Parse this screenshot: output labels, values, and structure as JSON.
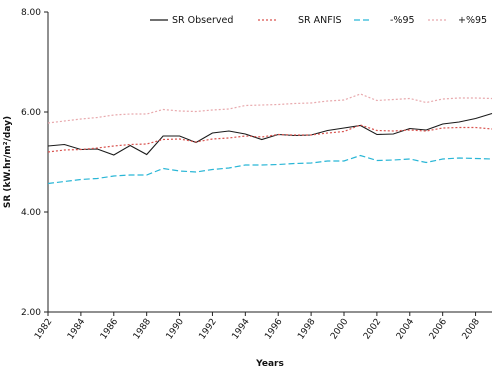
{
  "chart_data": {
    "type": "line",
    "xlabel": "Years",
    "ylabel": "SR (kW.hr/m²/day)",
    "ylim": [
      2,
      8
    ],
    "xlim": [
      1982,
      2009
    ],
    "y_ticks": [
      "2.00",
      "4.00",
      "6.00",
      "8.00"
    ],
    "x_ticks": [
      "1982",
      "1984",
      "1986",
      "1988",
      "1990",
      "1992",
      "1994",
      "1996",
      "1998",
      "2000",
      "2002",
      "2004",
      "2006",
      "2008"
    ],
    "grid": false,
    "legend_position": "top",
    "x": [
      1982,
      1983,
      1984,
      1985,
      1986,
      1987,
      1988,
      1989,
      1990,
      1991,
      1992,
      1993,
      1994,
      1995,
      1996,
      1997,
      1998,
      1999,
      2000,
      2001,
      2002,
      2003,
      2004,
      2005,
      2006,
      2007,
      2008,
      2009
    ],
    "series": [
      {
        "name": "SR Observed",
        "color": "#1a1a1a",
        "dash": "solid",
        "values": [
          5.32,
          5.35,
          5.25,
          5.26,
          5.14,
          5.33,
          5.15,
          5.52,
          5.52,
          5.39,
          5.58,
          5.62,
          5.56,
          5.45,
          5.55,
          5.53,
          5.54,
          5.63,
          5.68,
          5.73,
          5.55,
          5.56,
          5.67,
          5.64,
          5.76,
          5.8,
          5.87,
          5.97
        ]
      },
      {
        "name": "SR ANFIS",
        "color": "#d9534f",
        "dash": "dotted",
        "values": [
          5.2,
          5.24,
          5.25,
          5.28,
          5.32,
          5.35,
          5.36,
          5.45,
          5.46,
          5.4,
          5.46,
          5.48,
          5.52,
          5.5,
          5.55,
          5.54,
          5.54,
          5.58,
          5.61,
          5.74,
          5.63,
          5.62,
          5.64,
          5.62,
          5.68,
          5.69,
          5.69,
          5.66
        ]
      },
      {
        "name": "-%95",
        "color": "#29b6d6",
        "dash": "dashed",
        "values": [
          4.57,
          4.61,
          4.65,
          4.67,
          4.72,
          4.74,
          4.74,
          4.87,
          4.82,
          4.8,
          4.85,
          4.88,
          4.94,
          4.94,
          4.95,
          4.97,
          4.98,
          5.02,
          5.02,
          5.13,
          5.03,
          5.04,
          5.06,
          4.99,
          5.06,
          5.08,
          5.07,
          5.06
        ]
      },
      {
        "name": "+%95",
        "color": "#e8a9ad",
        "dash": "dotted",
        "values": [
          5.78,
          5.82,
          5.86,
          5.89,
          5.94,
          5.96,
          5.96,
          6.05,
          6.02,
          6.01,
          6.04,
          6.06,
          6.13,
          6.14,
          6.15,
          6.17,
          6.18,
          6.22,
          6.24,
          6.36,
          6.23,
          6.25,
          6.27,
          6.19,
          6.26,
          6.28,
          6.28,
          6.27
        ]
      }
    ]
  }
}
